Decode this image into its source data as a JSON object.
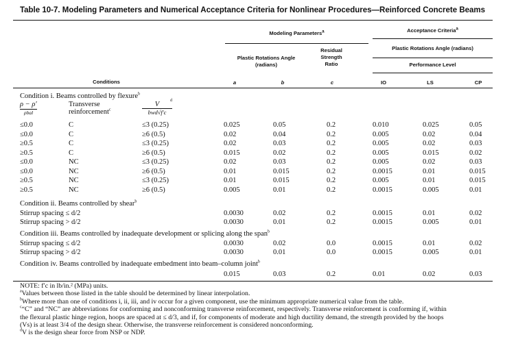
{
  "title": "Table 10-7. Modeling Parameters and Numerical Acceptance Criteria for Nonlinear Procedures—Reinforced Concrete Beams",
  "header": {
    "modeling": "Modeling Parameters",
    "modeling_sup": "a",
    "acceptance": "Acceptance Criteria",
    "acceptance_sup": "a",
    "plastic_rot": "Plastic Rotations Angle (radians)",
    "plastic_rot_line1": "Plastic Rotations Angle",
    "plastic_rot_line2": "(radians)",
    "residual_1": "Residual",
    "residual_2": "Strength",
    "residual_3": "Ratio",
    "performance": "Performance Level",
    "conditions": "Conditions",
    "col_a": "a",
    "col_b": "b",
    "col_c": "c",
    "col_io": "IO",
    "col_ls": "LS",
    "col_cp": "CP"
  },
  "cond1": {
    "title": "Condition i. Beams controlled by flexure",
    "sup": "b",
    "rho_label": "ρ − ρ′",
    "rho_sub": "ρbal",
    "trans_1": "Transverse",
    "trans_2": "reinforcement",
    "trans_sup": "c",
    "v_label": "V",
    "v_sup": "d",
    "v_den": "bwd√f′c",
    "rows": [
      [
        "≤0.0",
        "C",
        "≤3 (0.25)",
        "0.025",
        "0.05",
        "0.2",
        "0.010",
        "0.025",
        "0.05"
      ],
      [
        "≤0.0",
        "C",
        "≥6 (0.5)",
        "0.02",
        "0.04",
        "0.2",
        "0.005",
        "0.02",
        "0.04"
      ],
      [
        "≥0.5",
        "C",
        "≤3 (0.25)",
        "0.02",
        "0.03",
        "0.2",
        "0.005",
        "0.02",
        "0.03"
      ],
      [
        "≥0.5",
        "C",
        "≥6 (0.5)",
        "0.015",
        "0.02",
        "0.2",
        "0.005",
        "0.015",
        "0.02"
      ],
      [
        "≤0.0",
        "NC",
        "≤3 (0.25)",
        "0.02",
        "0.03",
        "0.2",
        "0.005",
        "0.02",
        "0.03"
      ],
      [
        "≤0.0",
        "NC",
        "≥6 (0.5)",
        "0.01",
        "0.015",
        "0.2",
        "0.0015",
        "0.01",
        "0.015"
      ],
      [
        "≥0.5",
        "NC",
        "≤3 (0.25)",
        "0.01",
        "0.015",
        "0.2",
        "0.005",
        "0.01",
        "0.015"
      ],
      [
        "≥0.5",
        "NC",
        "≥6 (0.5)",
        "0.005",
        "0.01",
        "0.2",
        "0.0015",
        "0.005",
        "0.01"
      ]
    ]
  },
  "cond2": {
    "title": "Condition ii. Beams controlled by shear",
    "sup": "b",
    "rows": [
      [
        "Stirrup spacing ≤ d/2",
        "0.0030",
        "0.02",
        "0.2",
        "0.0015",
        "0.01",
        "0.02"
      ],
      [
        "Stirrup spacing > d/2",
        "0.0030",
        "0.01",
        "0.2",
        "0.0015",
        "0.005",
        "0.01"
      ]
    ]
  },
  "cond3": {
    "title": "Condition iii. Beams controlled by inadequate development or splicing along the span",
    "sup": "b",
    "rows": [
      [
        "Stirrup spacing ≤ d/2",
        "0.0030",
        "0.02",
        "0.0",
        "0.0015",
        "0.01",
        "0.02"
      ],
      [
        "Stirrup spacing > d/2",
        "0.0030",
        "0.01",
        "0.0",
        "0.0015",
        "0.005",
        "0.01"
      ]
    ]
  },
  "cond4": {
    "title": "Condition iv. Beams controlled by inadequate embedment into beam–column joint",
    "sup": "b",
    "row": [
      "0.015",
      "0.03",
      "0.2",
      "0.01",
      "0.02",
      "0.03"
    ]
  },
  "notes": {
    "n0": "NOTE: f′c in lb/in.² (MPa) units.",
    "na": "Values between those listed in the table should be determined by linear interpolation.",
    "nb": "Where more than one of conditions i, ii, iii, and iv occur for a given component, use the minimum appropriate numerical value from the table.",
    "nc1": "“C” and “NC” are abbreviations for conforming and nonconforming transverse reinforcement, respectively. Transverse reinforcement is conforming if, within",
    "nc2": "the flexural plastic hinge region, hoops are spaced at ≤ d/3, and if, for components of moderate and high ductility demand, the strength provided by the hoops",
    "nc3": "(Vs) is at least 3/4 of the design shear. Otherwise, the transverse reinforcement is considered nonconforming.",
    "nd": "V is the design shear force from NSP or NDP."
  }
}
